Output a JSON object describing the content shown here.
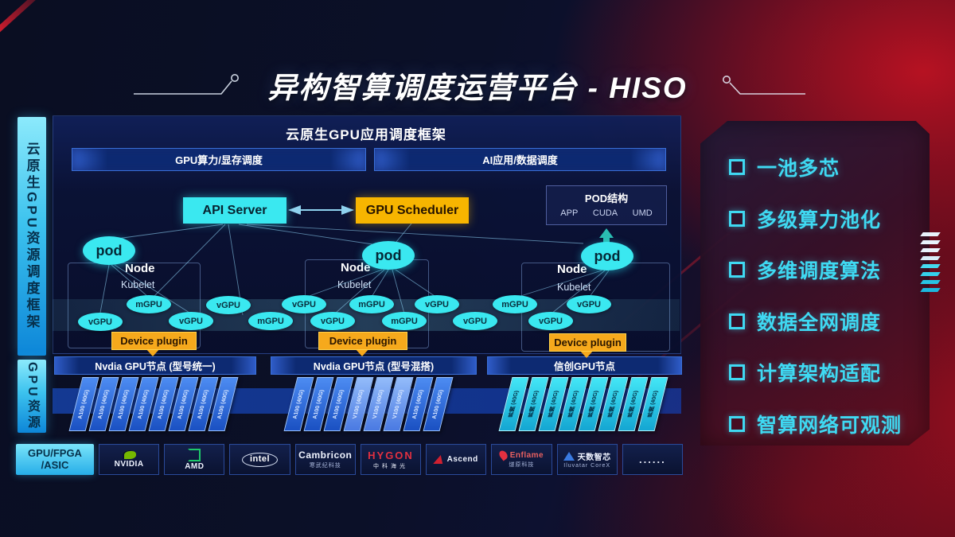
{
  "slide": {
    "title": "异构智算调度运营平台 - HISO"
  },
  "sidebar": {
    "top_label": "云原生GPU资源调度框架",
    "bottom_label": "GPU资源"
  },
  "framework": {
    "title": "云原生GPU应用调度框架",
    "bars": [
      "GPU算力/显存调度",
      "AI应用/数据调度"
    ]
  },
  "control_plane": {
    "api_server": "API Server",
    "gpu_scheduler": "GPU Scheduler",
    "pod_struct": {
      "title": "POD结构",
      "items": [
        "APP",
        "CUDA",
        "UMD"
      ]
    }
  },
  "nodes": [
    {
      "pod": "pod",
      "name": "Node",
      "agent": "Kubelet",
      "plugin": "Device plugin"
    },
    {
      "pod": "pod",
      "name": "Node",
      "agent": "Kubelet",
      "plugin": "Device plugin"
    },
    {
      "pod": "pod",
      "name": "Node",
      "agent": "Kubelet",
      "plugin": "Device plugin"
    }
  ],
  "gpu_ellipses": [
    "vGPU",
    "mGPU",
    "vGPU",
    "vGPU",
    "mGPU",
    "vGPU",
    "vGPU",
    "mGPU",
    "mGPU",
    "vGPU",
    "vGPU",
    "mGPU",
    "vGPU",
    "vGPU"
  ],
  "gpu_groups": [
    {
      "header": "Nvdia GPU节点 (型号统一)",
      "cards": [
        "A100 (40G)",
        "A100 (40G)",
        "A100 (40G)",
        "A100 (40G)",
        "A100 (40G)",
        "A100 (40G)",
        "A100 (40G)",
        "A100 (40G)"
      ]
    },
    {
      "header": "Nvdia GPU节点 (型号混搭)",
      "cards": [
        "A100 (40G)",
        "A100 (40G)",
        "A100 (40G)",
        "V100 (40G)",
        "V100 (40G)",
        "V100 (40G)",
        "A100 (40G)",
        "A100 (40G)"
      ]
    },
    {
      "header": "信创GPU节点",
      "cards": [
        "昇腾 (40G)",
        "昇腾 (40G)",
        "昇腾 (40G)",
        "昇腾 (40G)",
        "昇腾 (40G)",
        "昇腾 (40G)",
        "昇腾 (40G)",
        "昇腾 (40G)"
      ]
    }
  ],
  "vendor_bar": {
    "label_line1": "GPU/FPGA",
    "label_line2": "/ASIC",
    "vendors": [
      {
        "id": "nvidia",
        "logo": "nvidia-logo",
        "text": "NVIDIA"
      },
      {
        "id": "amd",
        "logo": "amd-logo",
        "text": "AMD"
      },
      {
        "id": "intel",
        "logo": "intel-logo",
        "text": "intel"
      },
      {
        "id": "cambricon",
        "text": "Cambricon",
        "subtext": "寒武纪科技"
      },
      {
        "id": "hygon",
        "text": "HYGON",
        "subtext": "中科海光"
      },
      {
        "id": "ascend",
        "logo": "ascend-logo",
        "text": "Ascend"
      },
      {
        "id": "enflame",
        "logo": "enflame-logo",
        "text": "Enflame",
        "subtext": "燧原科技"
      },
      {
        "id": "iluvatar",
        "logo": "iluvatar-logo",
        "text": "天数智芯",
        "subtext": "Iluvatar CoreX"
      },
      {
        "id": "more",
        "text": "......"
      }
    ]
  },
  "features": [
    "一池多芯",
    "多级算力池化",
    "多维调度算法",
    "数据全网调度",
    "计算架构适配",
    "智算网络可观测"
  ],
  "colors": {
    "accent_cyan": "#3ae8f0",
    "accent_yellow": "#f7b500",
    "accent_red": "#c01828",
    "feature_cyan": "#3fd9f2"
  }
}
